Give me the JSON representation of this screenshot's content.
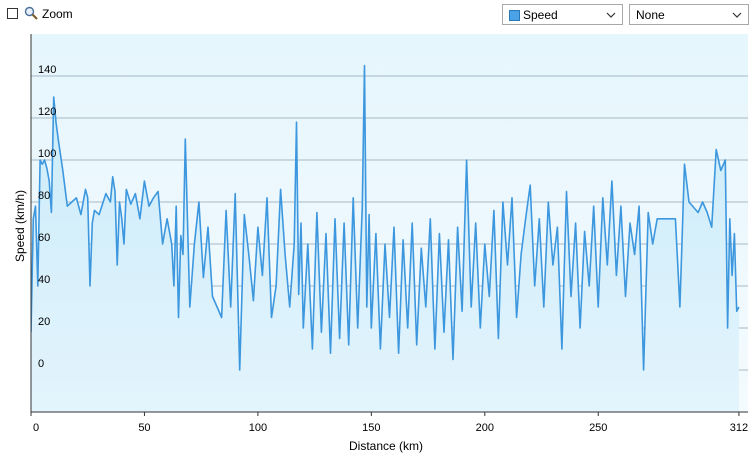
{
  "toolbar": {
    "zoom_checked": false,
    "zoom_label": "Zoom",
    "series_select": {
      "value": "Speed",
      "color": "#4aa3e8"
    },
    "compare_select": {
      "value": "None"
    }
  },
  "chart_data": {
    "type": "area",
    "title": "",
    "xlabel": "Distance  (km)",
    "ylabel": "Speed (km/h)",
    "xlim": [
      0,
      316
    ],
    "ylim": [
      -20,
      160
    ],
    "x_ticks": [
      {
        "value": 0,
        "label": "0"
      },
      {
        "value": 50,
        "label": "50"
      },
      {
        "value": 100,
        "label": "100"
      },
      {
        "value": 150,
        "label": "150"
      },
      {
        "value": 200,
        "label": "200"
      },
      {
        "value": 250,
        "label": "250"
      },
      {
        "value": 312,
        "label": "312"
      }
    ],
    "y_ticks": [
      0,
      20,
      40,
      60,
      80,
      100,
      120,
      140
    ],
    "grid": true,
    "colors": {
      "line": "#3d97de",
      "fill_top": "#d7f0fc",
      "fill_bottom": "#f0f9fe",
      "plot_bg": "#eaf7fd"
    },
    "series": [
      {
        "name": "Speed",
        "x": [
          0,
          1,
          2,
          3,
          4,
          5,
          6,
          7,
          8,
          9,
          10,
          11,
          12,
          14,
          16,
          18,
          20,
          22,
          24,
          25,
          26,
          27,
          28,
          30,
          33,
          35,
          36,
          37,
          38,
          39,
          40,
          41,
          42,
          44,
          46,
          48,
          50,
          52,
          54,
          56,
          58,
          60,
          62,
          63,
          64,
          65,
          66,
          67,
          68,
          70,
          72,
          74,
          76,
          78,
          80,
          82,
          84,
          86,
          88,
          90,
          92,
          94,
          96,
          98,
          100,
          102,
          104,
          106,
          108,
          110,
          112,
          114,
          116,
          117,
          118,
          119,
          120,
          122,
          124,
          126,
          128,
          130,
          132,
          134,
          136,
          138,
          140,
          142,
          144,
          146,
          147,
          148,
          149,
          150,
          152,
          154,
          156,
          158,
          160,
          162,
          164,
          166,
          168,
          170,
          172,
          174,
          176,
          178,
          180,
          182,
          184,
          186,
          188,
          190,
          192,
          194,
          196,
          198,
          200,
          202,
          204,
          206,
          208,
          210,
          212,
          214,
          216,
          218,
          220,
          222,
          224,
          226,
          228,
          230,
          232,
          234,
          236,
          238,
          240,
          242,
          244,
          246,
          248,
          250,
          252,
          254,
          256,
          258,
          260,
          262,
          264,
          266,
          268,
          270,
          272,
          274,
          276,
          280,
          284,
          286,
          288,
          290,
          294,
          296,
          298,
          300,
          302,
          304,
          306,
          307,
          308,
          309,
          310,
          311,
          312
        ],
        "values": [
          18,
          72,
          78,
          40,
          100,
          98,
          100,
          96,
          90,
          75,
          130,
          118,
          110,
          95,
          78,
          80,
          82,
          74,
          86,
          82,
          40,
          70,
          76,
          74,
          84,
          80,
          92,
          85,
          50,
          80,
          72,
          60,
          86,
          79,
          84,
          72,
          90,
          78,
          82,
          85,
          60,
          72,
          60,
          40,
          78,
          25,
          64,
          55,
          110,
          30,
          60,
          80,
          44,
          68,
          35,
          30,
          25,
          76,
          30,
          84,
          0,
          74,
          55,
          33,
          68,
          45,
          82,
          25,
          40,
          86,
          55,
          30,
          60,
          118,
          36,
          70,
          20,
          60,
          10,
          75,
          18,
          65,
          8,
          72,
          15,
          70,
          12,
          82,
          20,
          78,
          145,
          30,
          74,
          20,
          65,
          10,
          60,
          25,
          68,
          8,
          62,
          20,
          70,
          12,
          58,
          30,
          72,
          10,
          65,
          18,
          62,
          5,
          68,
          28,
          100,
          30,
          70,
          20,
          60,
          35,
          76,
          15,
          80,
          50,
          82,
          25,
          55,
          72,
          88,
          40,
          72,
          30,
          80,
          50,
          68,
          10,
          85,
          35,
          70,
          20,
          66,
          40,
          78,
          30,
          82,
          50,
          90,
          45,
          78,
          35,
          70,
          55,
          78,
          0,
          75,
          60,
          72,
          72,
          72,
          30,
          98,
          80,
          75,
          80,
          75,
          68,
          105,
          95,
          100,
          20,
          72,
          45,
          65,
          28,
          30
        ]
      }
    ]
  }
}
